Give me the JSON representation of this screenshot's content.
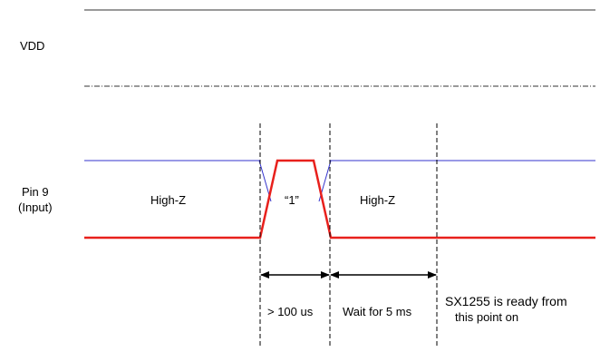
{
  "labels": {
    "vdd": "VDD",
    "pin9_line1": "Pin 9",
    "pin9_line2": "(Input)",
    "highz_left": "High-Z",
    "one": "“1”",
    "highz_right": "High-Z",
    "gt100": "> 100 us",
    "wait5": "Wait for 5 ms",
    "ready_line1": "SX1255  is ready from",
    "ready_line2": "this point on"
  },
  "colors": {
    "high_z_line": "#3333cc",
    "drive_line": "#e8201c",
    "neutral": "#000000"
  }
}
